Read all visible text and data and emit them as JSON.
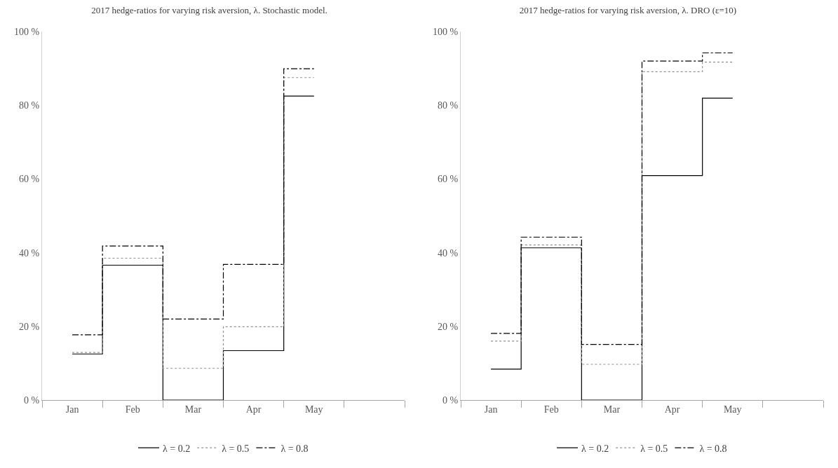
{
  "chart_data": [
    {
      "type": "step",
      "title": "2017 hedge-ratios for varying risk aversion, λ. Stochastic model.",
      "categories": [
        "Jan",
        "Feb",
        "Mar",
        "Apr",
        "May"
      ],
      "series": [
        {
          "name": "λ = 0.2",
          "color": "#000000",
          "line_style": "solid",
          "values": [
            12.5,
            36.6,
            0,
            13.4,
            82.5
          ]
        },
        {
          "name": "λ = 0.5",
          "color": "#909090",
          "line_style": "dotted",
          "values": [
            12.9,
            38.5,
            8.6,
            19.9,
            87.5
          ]
        },
        {
          "name": "λ = 0.8",
          "color": "#000000",
          "line_style": "dashdot",
          "values": [
            17.7,
            41.8,
            22.0,
            36.8,
            89.9
          ]
        }
      ],
      "ylim": [
        0,
        100
      ],
      "yticks": [
        {
          "value": 0,
          "label": "0 %"
        },
        {
          "value": 20,
          "label": "20 %"
        },
        {
          "value": 40,
          "label": "40 %"
        },
        {
          "value": 60,
          "label": "60 %"
        },
        {
          "value": 80,
          "label": "80 %"
        },
        {
          "value": 100,
          "label": "100 %"
        }
      ],
      "grid": false,
      "legend": "bottom",
      "marker": "none"
    },
    {
      "type": "step",
      "title": "2017 hedge-ratios for varying risk aversion, λ. DRO (ε=10)",
      "categories": [
        "Jan",
        "Feb",
        "Mar",
        "Apr",
        "May"
      ],
      "series": [
        {
          "name": "λ = 0.2",
          "color": "#000000",
          "line_style": "solid",
          "values": [
            8.4,
            41.3,
            0,
            60.9,
            81.9
          ]
        },
        {
          "name": "λ = 0.5",
          "color": "#909090",
          "line_style": "dotted",
          "values": [
            16.0,
            42.1,
            9.7,
            89.1,
            91.7
          ]
        },
        {
          "name": "λ = 0.8",
          "color": "#000000",
          "line_style": "dashdot",
          "values": [
            18.1,
            44.2,
            15.1,
            92.0,
            94.2
          ]
        }
      ],
      "ylim": [
        0,
        100
      ],
      "yticks": [
        {
          "value": 0,
          "label": "0 %"
        },
        {
          "value": 20,
          "label": "20 %"
        },
        {
          "value": 40,
          "label": "40 %"
        },
        {
          "value": 60,
          "label": "60 %"
        },
        {
          "value": 80,
          "label": "80 %"
        },
        {
          "value": 100,
          "label": "100 %"
        }
      ],
      "grid": false,
      "legend": "bottom",
      "marker": "none"
    }
  ]
}
